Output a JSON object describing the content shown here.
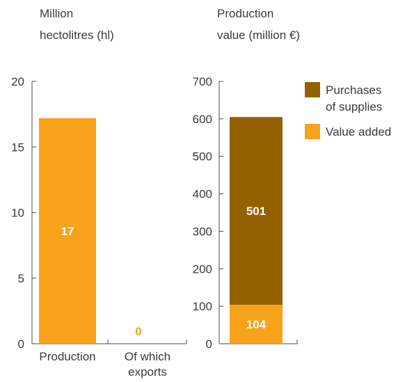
{
  "colors": {
    "value_added": "#F7A21B",
    "purchases_of_supplies": "#956100",
    "text": "#3a3a3a",
    "axis": "#4a4a4a",
    "label_on_bar": "#ffffff"
  },
  "chart_data": [
    {
      "type": "bar",
      "ylabel": [
        "Million",
        "hectolitres (hl)"
      ],
      "ylim": [
        0,
        20
      ],
      "yticks": [
        0,
        5,
        10,
        15,
        20
      ],
      "categories": [
        [
          "Production"
        ],
        [
          "Of which",
          "exports"
        ]
      ],
      "values": [
        17.2,
        0
      ],
      "data_labels": [
        "17",
        "0"
      ],
      "series_color": "value_added"
    },
    {
      "type": "bar",
      "stacked": true,
      "ylabel": [
        "Production",
        "value (million €)"
      ],
      "ylim": [
        0,
        700
      ],
      "yticks": [
        0,
        100,
        200,
        300,
        400,
        500,
        600,
        700
      ],
      "categories": [
        ""
      ],
      "series": [
        {
          "name": "Value added",
          "values": [
            104
          ],
          "data_label": "104",
          "color": "value_added"
        },
        {
          "name": "Purchases of supplies",
          "values": [
            501
          ],
          "data_label": "501",
          "color": "purchases_of_supplies"
        }
      ],
      "legend": {
        "placement": "right",
        "items": [
          {
            "label": [
              "Purchases",
              "of supplies"
            ],
            "color": "purchases_of_supplies"
          },
          {
            "label": [
              "Value added"
            ],
            "color": "value_added"
          }
        ]
      }
    }
  ]
}
